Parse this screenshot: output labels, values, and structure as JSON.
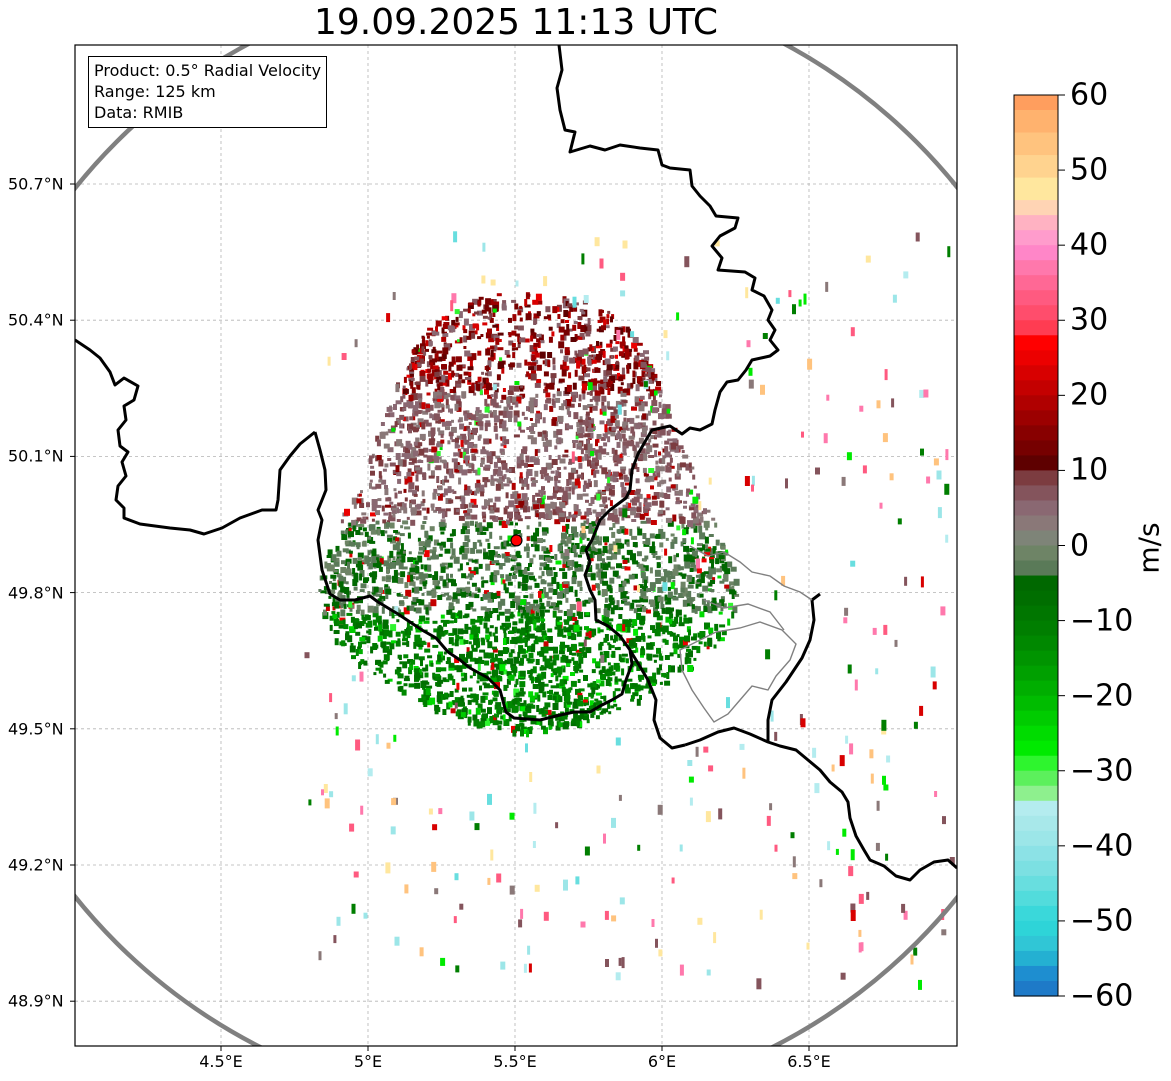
{
  "title": "19.09.2025 11:13 UTC",
  "info_box": {
    "product": "Product: 0.5° Radial Velocity",
    "range": "Range: 125 km",
    "data": "Data: RMIB"
  },
  "map": {
    "lon_range": [
      4.03,
      7.0
    ],
    "lat_range": [
      48.8,
      51.0
    ],
    "lon_ticks": [
      {
        "value": 4.5,
        "label": "4.5°E"
      },
      {
        "value": 5.0,
        "label": "5°E"
      },
      {
        "value": 5.5,
        "label": "5.5°E"
      },
      {
        "value": 6.0,
        "label": "6°E"
      },
      {
        "value": 6.5,
        "label": "6.5°E"
      }
    ],
    "lat_ticks": [
      {
        "value": 50.7,
        "label": "50.7°N"
      },
      {
        "value": 50.4,
        "label": "50.4°N"
      },
      {
        "value": 50.1,
        "label": "50.1°N"
      },
      {
        "value": 49.8,
        "label": "49.8°N"
      },
      {
        "value": 49.5,
        "label": "49.5°N"
      },
      {
        "value": 49.2,
        "label": "49.2°N"
      },
      {
        "value": 48.9,
        "label": "48.9°N"
      }
    ],
    "radar_site": {
      "lon": 5.505,
      "lat": 49.915
    },
    "range_ring_km": 125,
    "grid": true
  },
  "colorbar": {
    "label": "m/s",
    "min": -60,
    "max": 60,
    "ticks": [
      {
        "value": 60,
        "label": "60"
      },
      {
        "value": 50,
        "label": "50"
      },
      {
        "value": 40,
        "label": "40"
      },
      {
        "value": 30,
        "label": "30"
      },
      {
        "value": 20,
        "label": "20"
      },
      {
        "value": 10,
        "label": "10"
      },
      {
        "value": 0,
        "label": "0"
      },
      {
        "value": -10,
        "label": "−10"
      },
      {
        "value": -20,
        "label": "−20"
      },
      {
        "value": -30,
        "label": "−30"
      },
      {
        "value": -40,
        "label": "−40"
      },
      {
        "value": -50,
        "label": "−50"
      },
      {
        "value": -60,
        "label": "−60"
      }
    ],
    "stops": [
      {
        "from": 58,
        "color": "#ff9e5e"
      },
      {
        "from": 55,
        "color": "#ffb26e"
      },
      {
        "from": 52,
        "color": "#ffc37e"
      },
      {
        "from": 49,
        "color": "#ffd38f"
      },
      {
        "from": 46,
        "color": "#ffe79e"
      },
      {
        "from": 44,
        "color": "#ffd4b4"
      },
      {
        "from": 42,
        "color": "#ffb2c2"
      },
      {
        "from": 40,
        "color": "#ff9ccc"
      },
      {
        "from": 38,
        "color": "#ff86c8"
      },
      {
        "from": 36,
        "color": "#ff78ac"
      },
      {
        "from": 34,
        "color": "#ff6895"
      },
      {
        "from": 32,
        "color": "#ff5a80"
      },
      {
        "from": 30,
        "color": "#ff4d6c"
      },
      {
        "from": 28,
        "color": "#ff3c52"
      },
      {
        "from": 26,
        "color": "#ff0000"
      },
      {
        "from": 24,
        "color": "#ec0000"
      },
      {
        "from": 22,
        "color": "#d80000"
      },
      {
        "from": 20,
        "color": "#c40000"
      },
      {
        "from": 18,
        "color": "#b00000"
      },
      {
        "from": 16,
        "color": "#9c0000"
      },
      {
        "from": 14,
        "color": "#880000"
      },
      {
        "from": 12,
        "color": "#760000"
      },
      {
        "from": 10,
        "color": "#5e0000"
      },
      {
        "from": 8,
        "color": "#7c3c40"
      },
      {
        "from": 6,
        "color": "#84545c"
      },
      {
        "from": 4,
        "color": "#8a6872"
      },
      {
        "from": 2,
        "color": "#8a7878"
      },
      {
        "from": 0,
        "color": "#7e8478"
      },
      {
        "from": -2,
        "color": "#6e8466"
      },
      {
        "from": -4,
        "color": "#5a7a58"
      },
      {
        "from": -6,
        "color": "#006800"
      },
      {
        "from": -8,
        "color": "#006e00"
      },
      {
        "from": -10,
        "color": "#007600"
      },
      {
        "from": -12,
        "color": "#007e00"
      },
      {
        "from": -14,
        "color": "#008800"
      },
      {
        "from": -16,
        "color": "#009400"
      },
      {
        "from": -18,
        "color": "#00a000"
      },
      {
        "from": -20,
        "color": "#00ae00"
      },
      {
        "from": -22,
        "color": "#00bc00"
      },
      {
        "from": -24,
        "color": "#00cc00"
      },
      {
        "from": -26,
        "color": "#00dc00"
      },
      {
        "from": -28,
        "color": "#00ea00"
      },
      {
        "from": -30,
        "color": "#2ef52e"
      },
      {
        "from": -32,
        "color": "#5cf05c"
      },
      {
        "from": -34,
        "color": "#8ef08e"
      },
      {
        "from": -36,
        "color": "#b4ecef"
      },
      {
        "from": -38,
        "color": "#a8e8ea"
      },
      {
        "from": -40,
        "color": "#9ce6e8"
      },
      {
        "from": -42,
        "color": "#8ce2e6"
      },
      {
        "from": -44,
        "color": "#7ce0e2"
      },
      {
        "from": -46,
        "color": "#68dedf"
      },
      {
        "from": -48,
        "color": "#52dcdc"
      },
      {
        "from": -50,
        "color": "#3ad8da"
      },
      {
        "from": -52,
        "color": "#2ed4d8"
      },
      {
        "from": -54,
        "color": "#30c6d6"
      },
      {
        "from": -56,
        "color": "#24b0d2"
      },
      {
        "from": -58,
        "color": "#1e8ed0"
      },
      {
        "from": -60,
        "color": "#1e7ac8"
      }
    ]
  },
  "colors": {
    "border": "#000000",
    "subregion_border": "#808080",
    "range_ring": "#808080",
    "grid": "#b4b4b4",
    "radar_site_fill": "#ff0000"
  }
}
